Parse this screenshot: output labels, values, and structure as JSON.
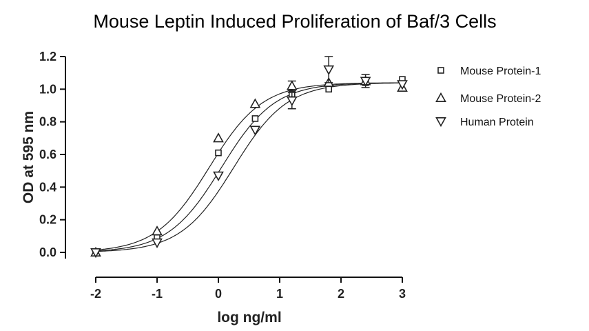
{
  "chart_data": {
    "type": "scatter",
    "title": "Mouse Leptin Induced Proliferation of Baf/3 Cells",
    "xlabel": "log ng/ml",
    "ylabel": "OD at 595 nm",
    "xlim": [
      -2,
      3
    ],
    "ylim": [
      0.0,
      1.2
    ],
    "x_ticks": [
      -2,
      -1,
      0,
      1,
      2,
      3
    ],
    "y_ticks": [
      0.0,
      0.2,
      0.4,
      0.6,
      0.8,
      1.0,
      1.2
    ],
    "x_tick_labels": [
      "-2",
      "-1",
      "0",
      "1",
      "2",
      "3"
    ],
    "y_tick_labels": [
      "0.0",
      "0.2",
      "0.4",
      "0.6",
      "0.8",
      "1.0",
      "1.2"
    ],
    "grid": false,
    "legend_position": "top-right",
    "series": [
      {
        "name": "Mouse Protein-1",
        "marker": "square",
        "fit": {
          "bottom": 0.0,
          "top": 1.04,
          "logEC50": 0.05,
          "hill": 1.0
        },
        "points": [
          {
            "x": -2.0,
            "y": 0.0
          },
          {
            "x": -1.0,
            "y": 0.09
          },
          {
            "x": 0.0,
            "y": 0.61
          },
          {
            "x": 0.6,
            "y": 0.82
          },
          {
            "x": 1.2,
            "y": 0.97
          },
          {
            "x": 1.8,
            "y": 1.0
          },
          {
            "x": 2.4,
            "y": 1.04
          },
          {
            "x": 3.0,
            "y": 1.06
          }
        ]
      },
      {
        "name": "Mouse Protein-2",
        "marker": "triangle-up",
        "fit": {
          "bottom": 0.0,
          "top": 1.04,
          "logEC50": -0.15,
          "hill": 1.0
        },
        "points": [
          {
            "x": -2.0,
            "y": 0.0
          },
          {
            "x": -1.0,
            "y": 0.13
          },
          {
            "x": 0.0,
            "y": 0.7
          },
          {
            "x": 0.6,
            "y": 0.91
          },
          {
            "x": 1.2,
            "y": 1.02,
            "err": 0.03
          },
          {
            "x": 1.8,
            "y": 1.04
          },
          {
            "x": 2.4,
            "y": 1.05,
            "err": 0.04
          },
          {
            "x": 3.0,
            "y": 1.01
          }
        ]
      },
      {
        "name": "Human Protein",
        "marker": "triangle-down",
        "fit": {
          "bottom": 0.0,
          "top": 1.04,
          "logEC50": 0.25,
          "hill": 1.0
        },
        "points": [
          {
            "x": -2.0,
            "y": 0.0
          },
          {
            "x": -1.0,
            "y": 0.06
          },
          {
            "x": 0.0,
            "y": 0.47
          },
          {
            "x": 0.6,
            "y": 0.75
          },
          {
            "x": 1.2,
            "y": 0.93,
            "err": 0.05
          },
          {
            "x": 1.8,
            "y": 1.12,
            "err": 0.08
          },
          {
            "x": 2.4,
            "y": 1.05
          },
          {
            "x": 3.0,
            "y": 1.03
          }
        ]
      }
    ]
  }
}
